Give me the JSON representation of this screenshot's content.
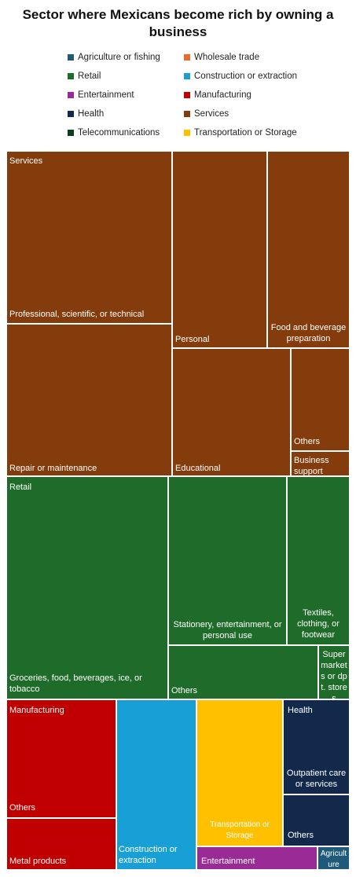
{
  "chart_data": {
    "type": "treemap",
    "title": "Sector where Mexicans become rich by owning a business",
    "legend": [
      {
        "name": "Agriculture or fishing",
        "color": "#1f5a7a"
      },
      {
        "name": "Wholesale trade",
        "color": "#e46c2c"
      },
      {
        "name": "Retail",
        "color": "#1f6b2a"
      },
      {
        "name": "Construction or extraction",
        "color": "#18a0d6"
      },
      {
        "name": "Entertainment",
        "color": "#9a2a96"
      },
      {
        "name": "Manufacturing",
        "color": "#c00000"
      },
      {
        "name": "Health",
        "color": "#13294b"
      },
      {
        "name": "Services",
        "color": "#843c0c"
      },
      {
        "name": "Telecommunications",
        "color": "#0f3d1a"
      },
      {
        "name": "Transportation or Storage",
        "color": "#ffc000"
      }
    ],
    "headers": [
      "Services",
      "Retail",
      "Manufacturing",
      "Health"
    ],
    "cells": [
      {
        "sector": "Services",
        "label": "Professional, scientific, or technical",
        "color": "#843c0c"
      },
      {
        "sector": "Services",
        "label": "Repair or maintenance",
        "color": "#843c0c"
      },
      {
        "sector": "Services",
        "label": "Personal",
        "color": "#843c0c"
      },
      {
        "sector": "Services",
        "label": "Food and beverage preparation",
        "color": "#843c0c"
      },
      {
        "sector": "Services",
        "label": "Educational",
        "color": "#843c0c"
      },
      {
        "sector": "Services",
        "label": "Others",
        "color": "#843c0c"
      },
      {
        "sector": "Services",
        "label": "Business support",
        "color": "#843c0c"
      },
      {
        "sector": "Retail",
        "label": "Groceries, food, beverages, ice, or tobacco",
        "color": "#1f6b2a"
      },
      {
        "sector": "Retail",
        "label": "Stationery, entertainment, or personal use",
        "color": "#1f6b2a"
      },
      {
        "sector": "Retail",
        "label": "Textiles, clothing, or footwear",
        "color": "#1f6b2a"
      },
      {
        "sector": "Retail",
        "label": "Others",
        "color": "#1f6b2a"
      },
      {
        "sector": "Retail",
        "label": "Supermarkets or dpt. stores",
        "color": "#1f6b2a"
      },
      {
        "sector": "Manufacturing",
        "label": "Others",
        "color": "#c00000"
      },
      {
        "sector": "Manufacturing",
        "label": "Metal products",
        "color": "#c00000"
      },
      {
        "sector": "Construction or extraction",
        "label": "Construction or extraction",
        "color": "#18a0d6"
      },
      {
        "sector": "Transportation or Storage",
        "label": "Transportation or Storage",
        "color": "#ffc000"
      },
      {
        "sector": "Health",
        "label": "Outpatient care or services",
        "color": "#13294b"
      },
      {
        "sector": "Health",
        "label": "Others",
        "color": "#13294b"
      },
      {
        "sector": "Entertainment",
        "label": "Entertainment",
        "color": "#9a2a96"
      },
      {
        "sector": "Agriculture or fishing",
        "label": "Agriculture",
        "color": "#1f5a7a"
      }
    ]
  }
}
